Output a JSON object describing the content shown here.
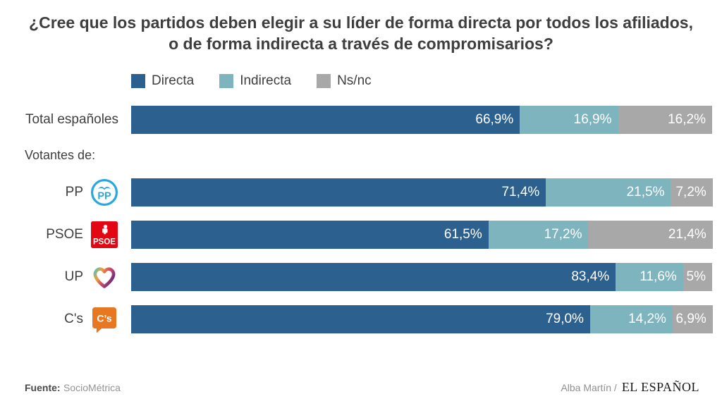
{
  "title": "¿Cree que los partidos deben elegir a su líder de forma directa por todos los afiliados, o de forma indirecta a través de compromisarios?",
  "section_label": "Votantes de:",
  "legend": [
    {
      "label": "Directa",
      "color": "#2c618f"
    },
    {
      "label": "Indirecta",
      "color": "#7db4be"
    },
    {
      "label": "Ns/nc",
      "color": "#a8a8a8"
    }
  ],
  "chart_data": {
    "type": "bar",
    "orientation": "horizontal",
    "stacked": true,
    "unit": "%",
    "xlim": [
      0,
      100
    ],
    "grid": false,
    "legend_position": "top",
    "title": "¿Cree que los partidos deben elegir a su líder de forma directa por todos los afiliados, o de forma indirecta a través de compromisarios?",
    "categories": [
      "Total españoles",
      "PP",
      "PSOE",
      "UP",
      "C's"
    ],
    "series": [
      {
        "name": "Directa",
        "color": "#2c618f",
        "values": [
          66.9,
          71.4,
          61.5,
          83.4,
          79.0
        ]
      },
      {
        "name": "Indirecta",
        "color": "#7db4be",
        "values": [
          16.9,
          21.5,
          17.2,
          11.6,
          14.2
        ]
      },
      {
        "name": "Ns/nc",
        "color": "#a8a8a8",
        "values": [
          16.2,
          7.2,
          21.4,
          5.0,
          6.9
        ]
      }
    ]
  },
  "rows": [
    {
      "label": "Total españoles",
      "logo": null,
      "segments": [
        {
          "value": 66.9,
          "text": "66,9%"
        },
        {
          "value": 16.9,
          "text": "16,9%"
        },
        {
          "value": 16.2,
          "text": "16,2%"
        }
      ]
    },
    {
      "label": "PP",
      "logo": "pp-logo",
      "segments": [
        {
          "value": 71.4,
          "text": "71,4%"
        },
        {
          "value": 21.5,
          "text": "21,5%"
        },
        {
          "value": 7.2,
          "text": "7,2%"
        }
      ]
    },
    {
      "label": "PSOE",
      "logo": "psoe-logo",
      "segments": [
        {
          "value": 61.5,
          "text": "61,5%"
        },
        {
          "value": 17.2,
          "text": "17,2%"
        },
        {
          "value": 21.4,
          "text": "21,4%"
        }
      ]
    },
    {
      "label": "UP",
      "logo": "up-logo",
      "segments": [
        {
          "value": 83.4,
          "text": "83,4%"
        },
        {
          "value": 11.6,
          "text": "11,6%"
        },
        {
          "value": 5.0,
          "text": "5%"
        }
      ]
    },
    {
      "label": "C's",
      "logo": "cs-logo",
      "segments": [
        {
          "value": 79.0,
          "text": "79,0%"
        },
        {
          "value": 14.2,
          "text": "14,2%"
        },
        {
          "value": 6.9,
          "text": "6,9%"
        }
      ]
    }
  ],
  "logo_colors": {
    "pp_blue": "#29a8df",
    "psoe_red": "#e30613",
    "cs_orange": "#e87722",
    "up_gradient": [
      "#56bfc0",
      "#f0a12f",
      "#d94a6a",
      "#6d2d80"
    ]
  },
  "footer": {
    "source_label": "Fuente:",
    "source_value": "SocioMétrica",
    "credit": "Alba Martín /",
    "brand": "EL ESPAÑOL"
  }
}
